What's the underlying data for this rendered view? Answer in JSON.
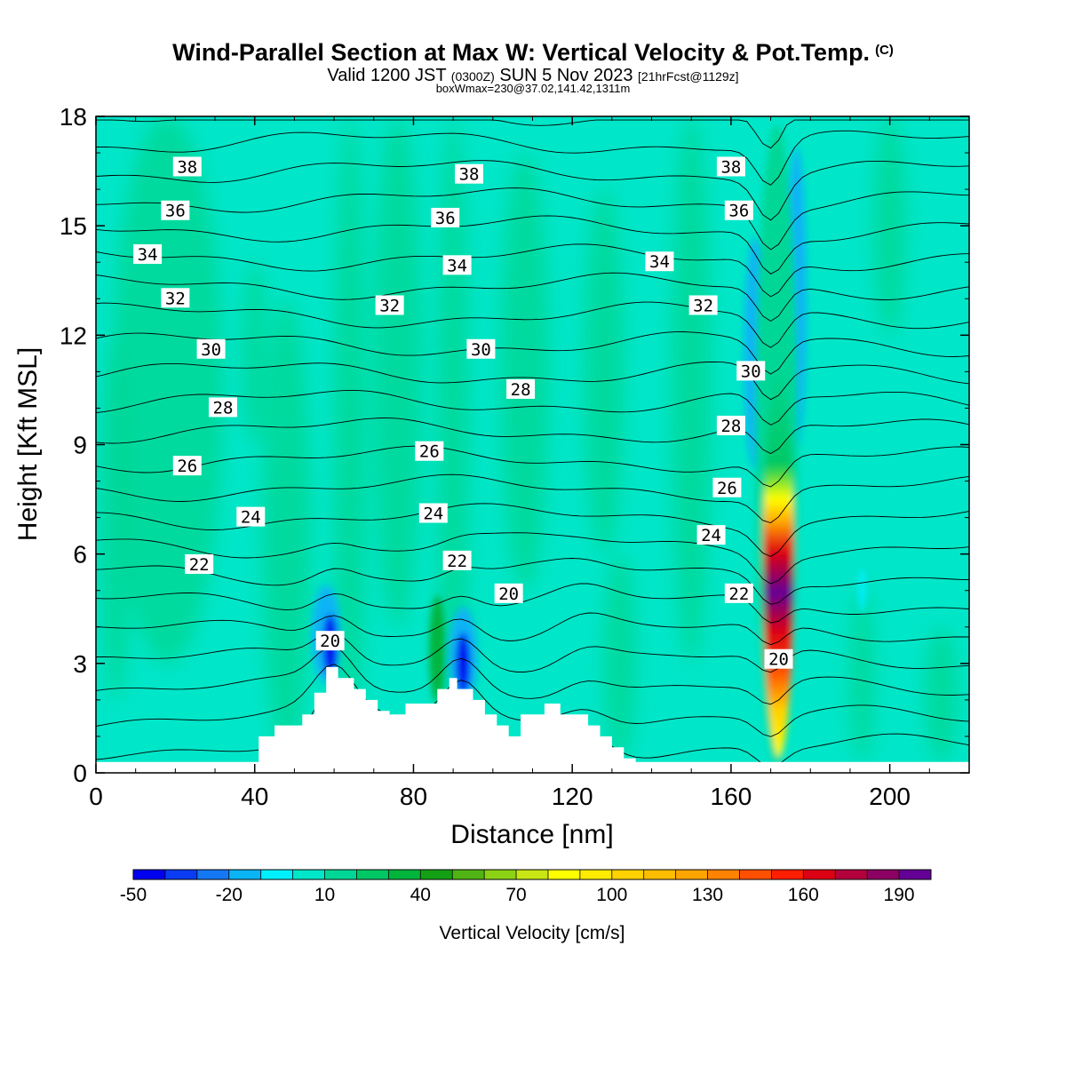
{
  "header": {
    "title": "Wind-Parallel Section at Max W: Vertical Velocity & Pot.Temp.",
    "copyright": "(C)",
    "valid_prefix": "Valid 1200 JST",
    "valid_utc": "(0300Z)",
    "valid_date": "SUN 5 Nov 2023",
    "forecast": "[21hrFcst@1129z]",
    "box_info": "boxWmax=230@37.02,141.42,1311m"
  },
  "chart_data": {
    "type": "heatmap",
    "title": "Wind-Parallel Section at Max W: Vertical Velocity & Pot.Temp.",
    "xlabel": "Distance [nm]",
    "ylabel": "Height [Kft MSL]",
    "xlim": [
      0,
      220
    ],
    "ylim": [
      0,
      18
    ],
    "x_ticks": [
      0,
      40,
      80,
      120,
      160,
      200
    ],
    "y_ticks": [
      0,
      3,
      6,
      9,
      12,
      15,
      18
    ],
    "grid": false,
    "background_value_cm_s": 0,
    "vertical_velocity_features": [
      {
        "name": "updraft core",
        "x": [
          168,
          176
        ],
        "y": [
          0.3,
          17.8
        ],
        "peak_cm_s": 190,
        "peak_height_kft": 6
      },
      {
        "name": "downdraft west of core",
        "x": [
          164,
          169
        ],
        "y": [
          8,
          15
        ],
        "min_cm_s": -30
      },
      {
        "name": "downdraft east of core",
        "x": [
          175,
          178
        ],
        "y": [
          8.5,
          18
        ],
        "min_cm_s": -30
      },
      {
        "name": "lee downdraft ridge 1",
        "x": [
          54,
          62
        ],
        "y": [
          2.5,
          5.3
        ],
        "min_cm_s": -40
      },
      {
        "name": "lee downdraft ridge 2",
        "x": [
          89,
          96
        ],
        "y": [
          2,
          4.8
        ],
        "min_cm_s": -40
      },
      {
        "name": "weak updraft band",
        "x": [
          82,
          90
        ],
        "y": [
          1.8,
          5.6
        ],
        "peak_cm_s": 30
      }
    ],
    "terrain_kft": {
      "x": [
        0,
        41,
        41,
        45,
        45,
        52,
        52,
        55,
        55,
        58,
        58,
        61,
        61,
        65,
        65,
        68,
        68,
        71,
        71,
        74,
        74,
        78,
        78,
        86,
        86,
        89,
        89,
        91,
        91,
        95,
        95,
        98,
        98,
        101,
        101,
        104,
        104,
        107,
        107,
        113,
        113,
        117,
        117,
        124,
        124,
        127,
        127,
        130,
        130,
        133,
        133,
        136,
        136,
        139,
        139,
        220
      ],
      "y": [
        0.3,
        0.3,
        1.0,
        1.0,
        1.3,
        1.3,
        1.6,
        1.6,
        2.2,
        2.2,
        2.9,
        2.9,
        2.6,
        2.6,
        2.3,
        2.3,
        2.0,
        2.0,
        1.7,
        1.7,
        1.6,
        1.6,
        1.9,
        1.9,
        2.3,
        2.3,
        2.6,
        2.6,
        2.3,
        2.3,
        2.0,
        2.0,
        1.6,
        1.6,
        1.3,
        1.3,
        1.0,
        1.0,
        1.6,
        1.6,
        1.9,
        1.9,
        1.6,
        1.6,
        1.3,
        1.3,
        1.0,
        1.0,
        0.7,
        0.7,
        0.4,
        0.4,
        0.3,
        0.3,
        0.3,
        0.3
      ]
    },
    "pot_temp_contour_labels": [
      {
        "value": "38",
        "x": 23,
        "y": 16.6
      },
      {
        "value": "38",
        "x": 94,
        "y": 16.4
      },
      {
        "value": "38",
        "x": 160,
        "y": 16.6
      },
      {
        "value": "36",
        "x": 20,
        "y": 15.4
      },
      {
        "value": "36",
        "x": 88,
        "y": 15.2
      },
      {
        "value": "36",
        "x": 162,
        "y": 15.4
      },
      {
        "value": "34",
        "x": 13,
        "y": 14.2
      },
      {
        "value": "34",
        "x": 91,
        "y": 13.9
      },
      {
        "value": "34",
        "x": 142,
        "y": 14.0
      },
      {
        "value": "32",
        "x": 20,
        "y": 13.0
      },
      {
        "value": "32",
        "x": 74,
        "y": 12.8
      },
      {
        "value": "32",
        "x": 153,
        "y": 12.8
      },
      {
        "value": "30",
        "x": 29,
        "y": 11.6
      },
      {
        "value": "30",
        "x": 97,
        "y": 11.6
      },
      {
        "value": "30",
        "x": 165,
        "y": 11.0
      },
      {
        "value": "28",
        "x": 32,
        "y": 10.0
      },
      {
        "value": "28",
        "x": 107,
        "y": 10.5
      },
      {
        "value": "28",
        "x": 160,
        "y": 9.5
      },
      {
        "value": "26",
        "x": 23,
        "y": 8.4
      },
      {
        "value": "26",
        "x": 84,
        "y": 8.8
      },
      {
        "value": "26",
        "x": 159,
        "y": 7.8
      },
      {
        "value": "24",
        "x": 39,
        "y": 7.0
      },
      {
        "value": "24",
        "x": 85,
        "y": 7.1
      },
      {
        "value": "24",
        "x": 155,
        "y": 6.5
      },
      {
        "value": "22",
        "x": 26,
        "y": 5.7
      },
      {
        "value": "22",
        "x": 91,
        "y": 5.8
      },
      {
        "value": "22",
        "x": 162,
        "y": 4.9
      },
      {
        "value": "20",
        "x": 59,
        "y": 3.6
      },
      {
        "value": "20",
        "x": 104,
        "y": 4.9
      },
      {
        "value": "20",
        "x": 172,
        "y": 3.1
      }
    ],
    "pot_temp_contour_levels": [
      18,
      19,
      20,
      21,
      22,
      23,
      24,
      25,
      26,
      27,
      28,
      29,
      30,
      31,
      32,
      33,
      34,
      35,
      36,
      37,
      38,
      39,
      40
    ]
  },
  "colorbar": {
    "label": "Vertical Velocity [cm/s]",
    "tick_labels": [
      "-50",
      "-20",
      "10",
      "40",
      "70",
      "100",
      "130",
      "160",
      "190"
    ],
    "levels": [
      -50,
      200
    ],
    "colors": [
      "#0000f0",
      "#0a3cf5",
      "#1478f5",
      "#0ab4f5",
      "#00f0ff",
      "#00e6c8",
      "#00d796",
      "#00c864",
      "#00b43c",
      "#14a014",
      "#50b414",
      "#8cd214",
      "#c8e614",
      "#ffff00",
      "#ffeb00",
      "#ffd200",
      "#ffbe00",
      "#ffa500",
      "#ff8200",
      "#ff5000",
      "#ff1e00",
      "#dc0014",
      "#b4003c",
      "#8c0064",
      "#640096"
    ]
  },
  "colors": {
    "terrain": "#ffffff",
    "contour": "#000000",
    "frame": "#000000"
  }
}
